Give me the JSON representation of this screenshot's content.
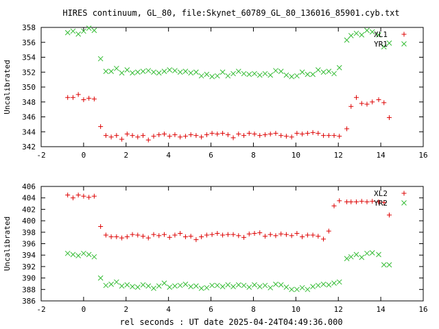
{
  "title": "HIRES continuum, GL_80, file:Skynet_60789_GL_80_136016_85901.cyb.txt",
  "xlabel": "rel seconds : UT date 2025-04-24T04:49:36.000",
  "colors": {
    "red": "#dd0000",
    "green": "#33bb33"
  },
  "chart_data": [
    {
      "type": "scatter",
      "ylabel": "Uncalibrated",
      "xlim": [
        -2,
        16
      ],
      "ylim": [
        342,
        358
      ],
      "xticks": [
        -2,
        0,
        2,
        4,
        6,
        8,
        10,
        12,
        14,
        16
      ],
      "yticks": [
        342,
        344,
        346,
        348,
        350,
        352,
        354,
        356,
        358
      ],
      "legend": "top-right",
      "series": [
        {
          "name": "XL1",
          "marker": "plus",
          "color": "#dd0000",
          "x": [
            -0.75,
            -0.5,
            -0.25,
            0,
            0.25,
            0.5,
            0.8,
            1.05,
            1.3,
            1.55,
            1.8,
            2.05,
            2.3,
            2.55,
            2.8,
            3.05,
            3.3,
            3.55,
            3.8,
            4.05,
            4.3,
            4.55,
            4.8,
            5.05,
            5.3,
            5.55,
            5.8,
            6.05,
            6.3,
            6.55,
            6.8,
            7.05,
            7.3,
            7.55,
            7.8,
            8.05,
            8.3,
            8.55,
            8.8,
            9.05,
            9.3,
            9.55,
            9.8,
            10.05,
            10.3,
            10.55,
            10.8,
            11.05,
            11.3,
            11.55,
            11.8,
            12.05,
            12.4,
            12.6,
            12.85,
            13.1,
            13.35,
            13.6,
            13.9,
            14.15,
            14.4
          ],
          "y": [
            348.6,
            348.6,
            349.0,
            348.3,
            348.5,
            348.4,
            344.7,
            343.5,
            343.3,
            343.5,
            343.0,
            343.7,
            343.5,
            343.3,
            343.5,
            342.9,
            343.4,
            343.6,
            343.7,
            343.4,
            343.6,
            343.3,
            343.4,
            343.6,
            343.5,
            343.3,
            343.6,
            343.8,
            343.7,
            343.8,
            343.6,
            343.2,
            343.7,
            343.5,
            343.8,
            343.7,
            343.5,
            343.6,
            343.7,
            343.8,
            343.5,
            343.4,
            343.3,
            343.8,
            343.7,
            343.8,
            343.9,
            343.8,
            343.5,
            343.5,
            343.5,
            343.4,
            344.4,
            347.4,
            348.6,
            347.8,
            347.7,
            348.0,
            348.3,
            347.9,
            345.9
          ]
        },
        {
          "name": "YR1",
          "marker": "cross",
          "color": "#33bb33",
          "x": [
            -0.75,
            -0.5,
            -0.25,
            0,
            0.25,
            0.5,
            0.8,
            1.05,
            1.3,
            1.55,
            1.8,
            2.05,
            2.3,
            2.55,
            2.8,
            3.05,
            3.3,
            3.55,
            3.8,
            4.05,
            4.3,
            4.55,
            4.8,
            5.05,
            5.3,
            5.55,
            5.8,
            6.05,
            6.3,
            6.55,
            6.8,
            7.05,
            7.3,
            7.55,
            7.8,
            8.05,
            8.3,
            8.55,
            8.8,
            9.05,
            9.3,
            9.55,
            9.8,
            10.05,
            10.3,
            10.55,
            10.8,
            11.05,
            11.3,
            11.55,
            11.8,
            12.05,
            12.4,
            12.6,
            12.85,
            13.1,
            13.35,
            13.6,
            13.9,
            14.15,
            14.4
          ],
          "y": [
            357.3,
            357.5,
            357.1,
            357.5,
            357.9,
            357.6,
            353.8,
            352.1,
            352.1,
            352.5,
            351.9,
            352.3,
            351.9,
            352.0,
            352.1,
            352.2,
            352.0,
            351.9,
            352.1,
            352.3,
            352.2,
            352.0,
            352.1,
            351.9,
            352.0,
            351.5,
            351.7,
            351.4,
            351.5,
            352.0,
            351.5,
            351.8,
            352.1,
            351.8,
            351.7,
            351.8,
            351.6,
            351.8,
            351.6,
            352.2,
            352.1,
            351.6,
            351.4,
            351.5,
            352.0,
            351.7,
            351.7,
            352.3,
            352.0,
            352.1,
            351.8,
            352.6,
            356.3,
            356.9,
            357.2,
            357.0,
            357.6,
            357.4,
            357.0,
            355.4,
            355.9
          ]
        }
      ]
    },
    {
      "type": "scatter",
      "ylabel": "Uncalibrated",
      "xlim": [
        -2,
        16
      ],
      "ylim": [
        386,
        406
      ],
      "xticks": [
        -2,
        0,
        2,
        4,
        6,
        8,
        10,
        12,
        14,
        16
      ],
      "yticks": [
        386,
        388,
        390,
        392,
        394,
        396,
        398,
        400,
        402,
        404,
        406
      ],
      "legend": "top-right",
      "series": [
        {
          "name": "XL2",
          "marker": "plus",
          "color": "#dd0000",
          "x": [
            -0.75,
            -0.5,
            -0.25,
            0,
            0.25,
            0.5,
            0.8,
            1.05,
            1.3,
            1.55,
            1.8,
            2.05,
            2.3,
            2.55,
            2.8,
            3.05,
            3.3,
            3.55,
            3.8,
            4.05,
            4.3,
            4.55,
            4.8,
            5.05,
            5.3,
            5.55,
            5.8,
            6.05,
            6.3,
            6.55,
            6.8,
            7.05,
            7.3,
            7.55,
            7.8,
            8.05,
            8.3,
            8.55,
            8.8,
            9.05,
            9.3,
            9.55,
            9.8,
            10.05,
            10.3,
            10.55,
            10.8,
            11.05,
            11.3,
            11.55,
            11.8,
            12.05,
            12.4,
            12.6,
            12.85,
            13.1,
            13.35,
            13.6,
            13.9,
            14.15,
            14.4
          ],
          "y": [
            404.5,
            404.0,
            404.5,
            404.3,
            404.1,
            404.3,
            399.0,
            397.5,
            397.2,
            397.2,
            397.0,
            397.2,
            397.6,
            397.5,
            397.3,
            397.0,
            397.6,
            397.4,
            397.6,
            397.1,
            397.5,
            397.8,
            397.2,
            397.3,
            396.7,
            397.2,
            397.5,
            397.6,
            397.8,
            397.5,
            397.6,
            397.6,
            397.4,
            397.1,
            397.7,
            397.8,
            397.9,
            397.3,
            397.6,
            397.4,
            397.7,
            397.6,
            397.4,
            397.8,
            397.2,
            397.5,
            397.5,
            397.3,
            396.8,
            398.2,
            402.6,
            403.5,
            403.3,
            403.3,
            403.3,
            403.4,
            403.3,
            403.4,
            403.3,
            403.2,
            401.0
          ]
        },
        {
          "name": "YR2",
          "marker": "cross",
          "color": "#33bb33",
          "x": [
            -0.75,
            -0.5,
            -0.25,
            0,
            0.25,
            0.5,
            0.8,
            1.05,
            1.3,
            1.55,
            1.8,
            2.05,
            2.3,
            2.55,
            2.8,
            3.05,
            3.3,
            3.55,
            3.8,
            4.05,
            4.3,
            4.55,
            4.8,
            5.05,
            5.3,
            5.55,
            5.8,
            6.05,
            6.3,
            6.55,
            6.8,
            7.05,
            7.3,
            7.55,
            7.8,
            8.05,
            8.3,
            8.55,
            8.8,
            9.05,
            9.3,
            9.55,
            9.8,
            10.05,
            10.3,
            10.55,
            10.8,
            11.05,
            11.3,
            11.55,
            11.8,
            12.05,
            12.4,
            12.6,
            12.85,
            13.1,
            13.35,
            13.6,
            13.9,
            14.15,
            14.4
          ],
          "y": [
            394.3,
            394.1,
            393.9,
            394.3,
            394.1,
            393.7,
            390.0,
            388.7,
            388.9,
            389.3,
            388.6,
            388.8,
            388.5,
            388.4,
            388.8,
            388.6,
            388.2,
            388.6,
            389.1,
            388.4,
            388.6,
            388.7,
            388.9,
            388.5,
            388.6,
            388.2,
            388.3,
            388.7,
            388.7,
            388.5,
            388.8,
            388.5,
            388.8,
            388.7,
            388.4,
            388.8,
            388.5,
            388.7,
            388.3,
            388.9,
            388.8,
            388.4,
            388.0,
            388.0,
            388.3,
            388.0,
            388.5,
            388.7,
            388.9,
            388.8,
            389.1,
            389.3,
            393.4,
            393.7,
            394.1,
            393.6,
            394.3,
            394.4,
            394.1,
            392.3,
            392.3
          ]
        }
      ]
    }
  ]
}
